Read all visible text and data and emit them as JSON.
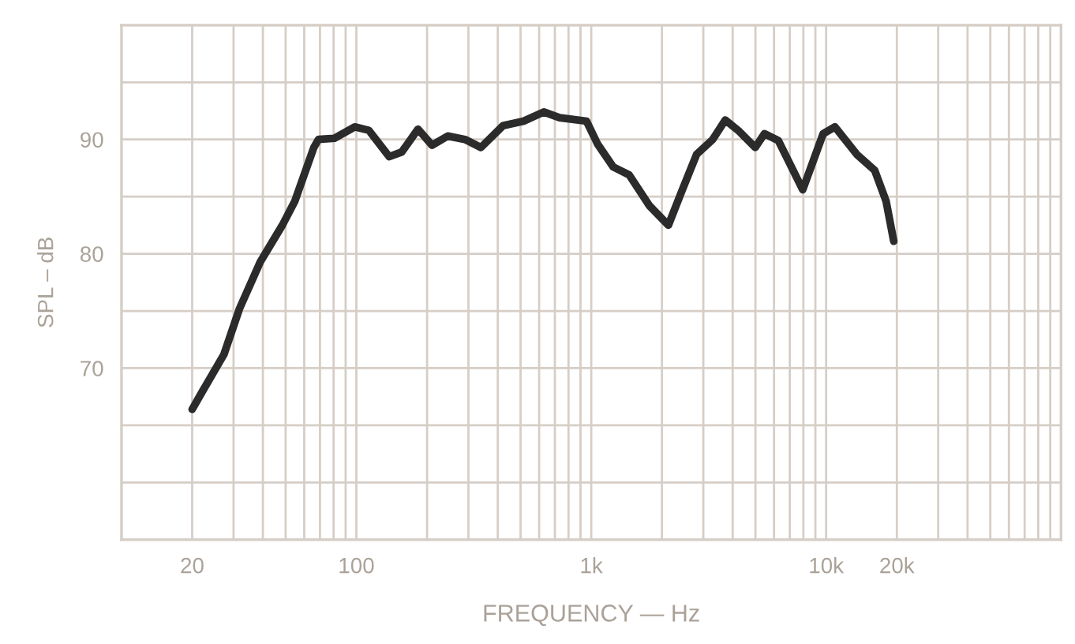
{
  "chart_data": {
    "type": "line",
    "xlabel": "FREQUENCY — Hz",
    "ylabel": "SPL – dB",
    "log": "x",
    "grid": true,
    "xlim": [
      10,
      100000
    ],
    "ylim": [
      55,
      100
    ],
    "xticks": [
      {
        "value": 10,
        "label": null
      },
      20,
      {
        "value": 30,
        "label": null
      },
      {
        "value": 40,
        "label": null
      },
      {
        "value": 50,
        "label": null
      },
      {
        "value": 60,
        "label": null
      },
      {
        "value": 70,
        "label": null
      },
      {
        "value": 80,
        "label": null
      },
      {
        "value": 90,
        "label": null
      },
      100,
      {
        "value": 200,
        "label": null
      },
      {
        "value": 300,
        "label": null
      },
      {
        "value": 400,
        "label": null
      },
      {
        "value": 500,
        "label": null
      },
      {
        "value": 600,
        "label": null
      },
      {
        "value": 700,
        "label": null
      },
      {
        "value": 800,
        "label": null
      },
      {
        "value": 900,
        "label": null
      },
      {
        "value": 1000,
        "label": "1k"
      },
      {
        "value": 2000,
        "label": null
      },
      {
        "value": 3000,
        "label": null
      },
      {
        "value": 4000,
        "label": null
      },
      {
        "value": 5000,
        "label": null
      },
      {
        "value": 6000,
        "label": null
      },
      {
        "value": 7000,
        "label": null
      },
      {
        "value": 8000,
        "label": null
      },
      {
        "value": 9000,
        "label": null
      },
      {
        "value": 10000,
        "label": "10k"
      },
      {
        "value": 20000,
        "label": "20k"
      },
      {
        "value": 30000,
        "label": null
      },
      {
        "value": 40000,
        "label": null
      },
      {
        "value": 50000,
        "label": null
      },
      {
        "value": 60000,
        "label": null
      },
      {
        "value": 70000,
        "label": null
      },
      {
        "value": 80000,
        "label": null
      },
      {
        "value": 90000,
        "label": null
      },
      {
        "value": 100000,
        "label": null
      }
    ],
    "yticks": [
      {
        "value": 55,
        "label": null
      },
      {
        "value": 60,
        "label": null
      },
      {
        "value": 65,
        "label": null
      },
      70,
      {
        "value": 75,
        "label": null
      },
      80,
      {
        "value": 85,
        "label": null
      },
      90,
      {
        "value": 95,
        "label": null
      },
      {
        "value": 100,
        "label": null
      }
    ],
    "x": [
      20,
      22.3,
      27.3,
      31.8,
      39,
      48.4,
      54.7,
      65.9,
      69,
      80.6,
      98.5,
      113,
      138,
      156,
      183,
      210,
      245,
      290,
      339,
      421,
      515,
      628,
      733,
      955,
      1064,
      1240,
      1450,
      1770,
      2130,
      2410,
      2810,
      3290,
      3720,
      4270,
      4990,
      5460,
      6260,
      7950,
      9710,
      10900,
      13500,
      16100,
      18000,
      19400
    ],
    "series": [
      {
        "color": "#2b2b2b",
        "values": [
          66.4,
          68.1,
          71.2,
          75.2,
          79.3,
          82.5,
          84.6,
          89.3,
          90.0,
          90.1,
          91.1,
          90.8,
          88.5,
          88.9,
          90.9,
          89.5,
          90.3,
          90.0,
          89.3,
          91.2,
          91.6,
          92.4,
          91.9,
          91.6,
          89.6,
          87.6,
          86.9,
          84.2,
          82.5,
          85.3,
          88.7,
          90.0,
          91.7,
          90.7,
          89.3,
          90.5,
          89.9,
          85.6,
          90.5,
          91.1,
          88.7,
          87.3,
          84.6,
          81.1
        ]
      }
    ]
  }
}
